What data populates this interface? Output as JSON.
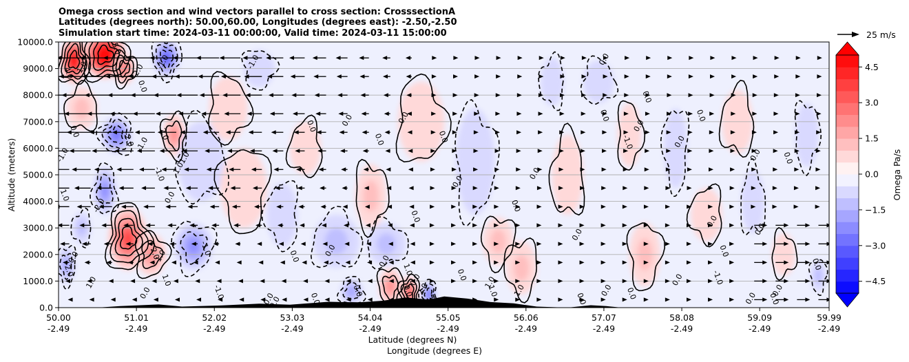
{
  "chart_data": {
    "type": "heatmap",
    "title_lines": [
      "Omega cross section and wind vectors parallel to cross section: CrosssectionA",
      "Latitudes (degrees north): 50.00,60.00, Longitudes (degrees east): -2.50,-2.50",
      "Simulation start time: 2024-03-11 00:00:00, Valid time: 2024-03-11 15:00:00"
    ],
    "xlabel": "Latitude (degrees N)",
    "xlabel2": "Longitude (degrees E)",
    "ylabel": "Altitude (meters)",
    "xlim": [
      50.0,
      59.99
    ],
    "ylim": [
      0,
      10000
    ],
    "x_ticks": [
      {
        "lat": 50.0,
        "label": "50.00",
        "lon": "-2.49"
      },
      {
        "lat": 51.01,
        "label": "51.01",
        "lon": "-2.49"
      },
      {
        "lat": 52.02,
        "label": "52.02",
        "lon": "-2.49"
      },
      {
        "lat": 53.03,
        "label": "53.03",
        "lon": "-2.49"
      },
      {
        "lat": 54.04,
        "label": "54.04",
        "lon": "-2.49"
      },
      {
        "lat": 55.05,
        "label": "55.05",
        "lon": "-2.49"
      },
      {
        "lat": 56.06,
        "label": "56.06",
        "lon": "-2.49"
      },
      {
        "lat": 57.07,
        "label": "57.07",
        "lon": "-2.49"
      },
      {
        "lat": 58.08,
        "label": "58.08",
        "lon": "-2.49"
      },
      {
        "lat": 59.09,
        "label": "59.09",
        "lon": "-2.49"
      },
      {
        "lat": 59.99,
        "label": "59.99",
        "lon": "-2.49"
      }
    ],
    "y_ticks": [
      {
        "value": 0,
        "label": "0.0"
      },
      {
        "value": 1000,
        "label": "1000.0"
      },
      {
        "value": 2000,
        "label": "2000.0"
      },
      {
        "value": 3000,
        "label": "3000.0"
      },
      {
        "value": 4000,
        "label": "4000.0"
      },
      {
        "value": 5000,
        "label": "5000.0"
      },
      {
        "value": 6000,
        "label": "6000.0"
      },
      {
        "value": 7000,
        "label": "7000.0"
      },
      {
        "value": 8000,
        "label": "8000.0"
      },
      {
        "value": 9000,
        "label": "9000.0"
      },
      {
        "value": 10000,
        "label": "10000.0"
      }
    ],
    "colorbar": {
      "label": "Omega Pa/s",
      "range": [
        -5.0,
        5.0
      ],
      "step": 0.5,
      "colormap": "bwr",
      "extend": "both",
      "ticks": [
        {
          "value": 4.5,
          "label": "4.5"
        },
        {
          "value": 3.0,
          "label": "3.0"
        },
        {
          "value": 1.5,
          "label": "1.5"
        },
        {
          "value": 0.0,
          "label": "0.0"
        },
        {
          "value": -1.5,
          "label": "−1.5"
        },
        {
          "value": -3.0,
          "label": "−3.0"
        },
        {
          "value": -4.5,
          "label": "−4.5"
        }
      ]
    },
    "quiver_key": {
      "label": "25 m/s",
      "speed": 25
    },
    "omega_features": [
      {
        "lat": 50.2,
        "alt": 9300,
        "omega": 5.0,
        "wlat": 0.18,
        "walt": 900
      },
      {
        "lat": 50.6,
        "alt": 9500,
        "omega": 6.0,
        "wlat": 0.28,
        "walt": 900
      },
      {
        "lat": 50.85,
        "alt": 9000,
        "omega": 2.5,
        "wlat": 0.15,
        "walt": 600
      },
      {
        "lat": 51.4,
        "alt": 9400,
        "omega": -3.0,
        "wlat": 0.18,
        "walt": 700
      },
      {
        "lat": 51.5,
        "alt": 6500,
        "omega": 2.0,
        "wlat": 0.15,
        "walt": 800
      },
      {
        "lat": 50.75,
        "alt": 6500,
        "omega": -2.5,
        "wlat": 0.2,
        "walt": 700
      },
      {
        "lat": 50.6,
        "alt": 4400,
        "omega": -2.2,
        "wlat": 0.15,
        "walt": 900
      },
      {
        "lat": 50.9,
        "alt": 2600,
        "omega": 3.5,
        "wlat": 0.26,
        "walt": 1200
      },
      {
        "lat": 51.2,
        "alt": 2000,
        "omega": 2.0,
        "wlat": 0.2,
        "walt": 800
      },
      {
        "lat": 51.75,
        "alt": 2300,
        "omega": -1.8,
        "wlat": 0.25,
        "walt": 900
      },
      {
        "lat": 50.1,
        "alt": 1600,
        "omega": -1.6,
        "wlat": 0.12,
        "walt": 700
      },
      {
        "lat": 50.3,
        "alt": 3000,
        "omega": -1.0,
        "wlat": 0.12,
        "walt": 600
      },
      {
        "lat": 50.3,
        "alt": 7500,
        "omega": 0.8,
        "wlat": 0.2,
        "walt": 800
      },
      {
        "lat": 51.85,
        "alt": 5500,
        "omega": -0.7,
        "wlat": 0.3,
        "walt": 1500
      },
      {
        "lat": 52.2,
        "alt": 7500,
        "omega": 0.6,
        "wlat": 0.25,
        "walt": 1200
      },
      {
        "lat": 52.6,
        "alt": 9000,
        "omega": -0.6,
        "wlat": 0.2,
        "walt": 700
      },
      {
        "lat": 52.4,
        "alt": 4500,
        "omega": 0.5,
        "wlat": 0.3,
        "walt": 1500
      },
      {
        "lat": 52.9,
        "alt": 3500,
        "omega": -0.6,
        "wlat": 0.2,
        "walt": 1200
      },
      {
        "lat": 53.2,
        "alt": 6000,
        "omega": 0.5,
        "wlat": 0.2,
        "walt": 1000
      },
      {
        "lat": 53.6,
        "alt": 2500,
        "omega": -0.8,
        "wlat": 0.3,
        "walt": 1000
      },
      {
        "lat": 54.25,
        "alt": 2400,
        "omega": -1.2,
        "wlat": 0.25,
        "walt": 800
      },
      {
        "lat": 54.05,
        "alt": 4200,
        "omega": 0.8,
        "wlat": 0.2,
        "walt": 1200
      },
      {
        "lat": 54.3,
        "alt": 800,
        "omega": 2.0,
        "wlat": 0.15,
        "walt": 700
      },
      {
        "lat": 54.55,
        "alt": 600,
        "omega": 3.0,
        "wlat": 0.12,
        "walt": 600
      },
      {
        "lat": 54.8,
        "alt": 500,
        "omega": -2.5,
        "wlat": 0.1,
        "walt": 500
      },
      {
        "lat": 53.8,
        "alt": 600,
        "omega": -1.5,
        "wlat": 0.15,
        "walt": 500
      },
      {
        "lat": 54.7,
        "alt": 7000,
        "omega": 0.7,
        "wlat": 0.3,
        "walt": 1500
      },
      {
        "lat": 55.4,
        "alt": 5500,
        "omega": -0.5,
        "wlat": 0.25,
        "walt": 2000
      },
      {
        "lat": 55.7,
        "alt": 2500,
        "omega": 0.8,
        "wlat": 0.2,
        "walt": 900
      },
      {
        "lat": 56.0,
        "alt": 1500,
        "omega": 0.8,
        "wlat": 0.2,
        "walt": 1000
      },
      {
        "lat": 56.4,
        "alt": 8500,
        "omega": -0.5,
        "wlat": 0.15,
        "walt": 900
      },
      {
        "lat": 56.6,
        "alt": 5000,
        "omega": 0.6,
        "wlat": 0.2,
        "walt": 1500
      },
      {
        "lat": 57.0,
        "alt": 8500,
        "omega": -0.5,
        "wlat": 0.2,
        "walt": 800
      },
      {
        "lat": 57.4,
        "alt": 6500,
        "omega": 0.6,
        "wlat": 0.15,
        "walt": 1200
      },
      {
        "lat": 57.6,
        "alt": 2000,
        "omega": 0.8,
        "wlat": 0.2,
        "walt": 1200
      },
      {
        "lat": 58.0,
        "alt": 6000,
        "omega": -0.6,
        "wlat": 0.15,
        "walt": 1500
      },
      {
        "lat": 58.4,
        "alt": 3500,
        "omega": 0.6,
        "wlat": 0.2,
        "walt": 1000
      },
      {
        "lat": 58.8,
        "alt": 7000,
        "omega": 0.5,
        "wlat": 0.2,
        "walt": 1200
      },
      {
        "lat": 59.0,
        "alt": 4000,
        "omega": -0.7,
        "wlat": 0.15,
        "walt": 1200
      },
      {
        "lat": 59.4,
        "alt": 2000,
        "omega": 0.7,
        "wlat": 0.15,
        "walt": 800
      },
      {
        "lat": 59.7,
        "alt": 6500,
        "omega": -0.5,
        "wlat": 0.15,
        "walt": 1200
      },
      {
        "lat": 59.85,
        "alt": 1200,
        "omega": -0.8,
        "wlat": 0.1,
        "walt": 600
      }
    ],
    "contour_labels": [
      {
        "lat": 50.1,
        "alt": 8800,
        "text": "4.0"
      },
      {
        "lat": 50.33,
        "alt": 9000,
        "text": "1.0"
      },
      {
        "lat": 50.72,
        "alt": 9720,
        "text": "5.0"
      },
      {
        "lat": 51.06,
        "alt": 8900,
        "text": "2.0"
      },
      {
        "lat": 51.06,
        "alt": 8300,
        "text": "0.0"
      },
      {
        "lat": 51.38,
        "alt": 9200,
        "text": "-1.0"
      },
      {
        "lat": 50.18,
        "alt": 6600,
        "text": "0.0"
      },
      {
        "lat": 50.08,
        "alt": 5700,
        "text": "-1.0"
      },
      {
        "lat": 50.88,
        "alt": 6300,
        "text": "-2.0"
      },
      {
        "lat": 51.11,
        "alt": 6100,
        "text": "-1.0"
      },
      {
        "lat": 51.34,
        "alt": 6500,
        "text": "2.0"
      },
      {
        "lat": 51.62,
        "alt": 5400,
        "text": "1.01.0"
      },
      {
        "lat": 51.28,
        "alt": 5000,
        "text": "-1.0"
      },
      {
        "lat": 51.47,
        "alt": 4100,
        "text": "0.0"
      },
      {
        "lat": 50.05,
        "alt": 4200,
        "text": "1.0"
      },
      {
        "lat": 50.55,
        "alt": 3800,
        "text": "-2.0"
      },
      {
        "lat": 51.22,
        "alt": 2000,
        "text": "2.0"
      },
      {
        "lat": 51.35,
        "alt": 1900,
        "text": "1.0"
      },
      {
        "lat": 51.88,
        "alt": 2200,
        "text": "-1.0"
      },
      {
        "lat": 50.22,
        "alt": 1850,
        "text": "0.0"
      },
      {
        "lat": 50.1,
        "alt": 1400,
        "text": "-2.0"
      },
      {
        "lat": 50.45,
        "alt": 900,
        "text": "1.0"
      },
      {
        "lat": 51.37,
        "alt": 1000,
        "text": "1.0"
      },
      {
        "lat": 51.15,
        "alt": 500,
        "text": "0.0"
      },
      {
        "lat": 52.05,
        "alt": 550,
        "text": "-1.0"
      },
      {
        "lat": 52.55,
        "alt": 9200,
        "text": "-1.0"
      },
      {
        "lat": 53.25,
        "alt": 6800,
        "text": "0.0"
      },
      {
        "lat": 53.77,
        "alt": 7000,
        "text": "0.0"
      },
      {
        "lat": 54.13,
        "alt": 6300,
        "text": "0.0"
      },
      {
        "lat": 54.5,
        "alt": 7100,
        "text": "0.0"
      },
      {
        "lat": 54.96,
        "alt": 6400,
        "text": "0.0"
      },
      {
        "lat": 55.2,
        "alt": 4700,
        "text": "0.0"
      },
      {
        "lat": 54.6,
        "alt": 3400,
        "text": "0.0"
      },
      {
        "lat": 53.55,
        "alt": 2100,
        "text": "0.0"
      },
      {
        "lat": 53.03,
        "alt": 1900,
        "text": "0.0"
      },
      {
        "lat": 54.25,
        "alt": 1700,
        "text": "0.0"
      },
      {
        "lat": 55.9,
        "alt": 3800,
        "text": "0.0"
      },
      {
        "lat": 56.2,
        "alt": 5000,
        "text": "0.0"
      },
      {
        "lat": 55.2,
        "alt": 1200,
        "text": "0.0"
      },
      {
        "lat": 55.62,
        "alt": 900,
        "text": "1.0"
      },
      {
        "lat": 55.6,
        "alt": 600,
        "text": "1.0"
      },
      {
        "lat": 56.0,
        "alt": 600,
        "text": "1.0"
      },
      {
        "lat": 54.5,
        "alt": 1400,
        "text": "1.0"
      },
      {
        "lat": 54.65,
        "alt": 1000,
        "text": "0.0"
      },
      {
        "lat": 54.5,
        "alt": 600,
        "text": "0.0"
      },
      {
        "lat": 54.75,
        "alt": 650,
        "text": "2.0"
      },
      {
        "lat": 53.85,
        "alt": 600,
        "text": "0.0"
      },
      {
        "lat": 56.75,
        "alt": 2700,
        "text": "0.0"
      },
      {
        "lat": 57.05,
        "alt": 7200,
        "text": "0.0"
      },
      {
        "lat": 57.1,
        "alt": 9300,
        "text": "0.0"
      },
      {
        "lat": 57.35,
        "alt": 6200,
        "text": "-1.0"
      },
      {
        "lat": 57.55,
        "alt": 6800,
        "text": "0.0"
      },
      {
        "lat": 57.6,
        "alt": 7900,
        "text": "0.0"
      },
      {
        "lat": 58.08,
        "alt": 6200,
        "text": "0.0"
      },
      {
        "lat": 58.3,
        "alt": 7200,
        "text": "0.0"
      },
      {
        "lat": 58.5,
        "alt": 3200,
        "text": "0.0"
      },
      {
        "lat": 58.6,
        "alt": 2100,
        "text": "0.0"
      },
      {
        "lat": 58.05,
        "alt": 1000,
        "text": "0.0"
      },
      {
        "lat": 58.52,
        "alt": 1100,
        "text": "-1.0"
      },
      {
        "lat": 59.06,
        "alt": 5700,
        "text": "0.0"
      },
      {
        "lat": 59.43,
        "alt": 5600,
        "text": "0.0"
      },
      {
        "lat": 59.12,
        "alt": 2900,
        "text": "0.0"
      },
      {
        "lat": 59.8,
        "alt": 1600,
        "text": "0.0"
      },
      {
        "lat": 59.0,
        "alt": 300,
        "text": "0.0"
      },
      {
        "lat": 59.25,
        "alt": 300,
        "text": "0.0"
      },
      {
        "lat": 59.35,
        "alt": 600,
        "text": "0.0"
      },
      {
        "lat": 57.4,
        "alt": 500,
        "text": "0.0"
      },
      {
        "lat": 57.13,
        "alt": 600,
        "text": "0.0"
      },
      {
        "lat": 56.75,
        "alt": 300,
        "text": "0.0"
      },
      {
        "lat": 52.83,
        "alt": 150,
        "text": "0.0"
      },
      {
        "lat": 53.3,
        "alt": 300,
        "text": "0.0"
      },
      {
        "lat": 52.75,
        "alt": 280,
        "text": "0.0"
      }
    ]
  }
}
